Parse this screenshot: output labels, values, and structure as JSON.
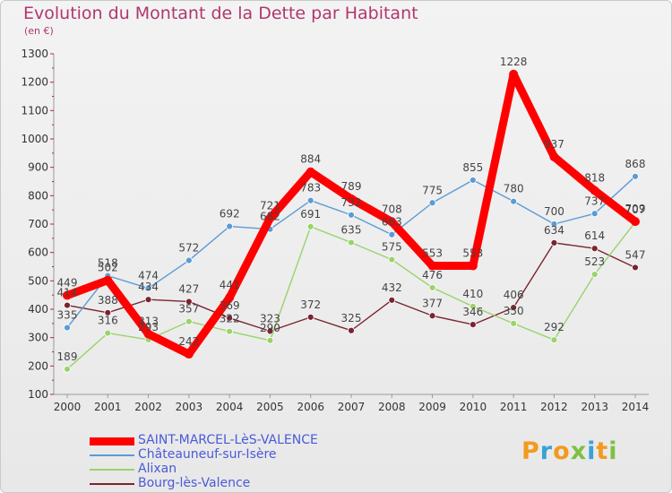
{
  "title": "Evolution du Montant de la Dette par Habitant",
  "subtitle": "(en €)",
  "logo": {
    "text": "Proxiti",
    "colors": [
      "#f39a1e",
      "#3aa0d8",
      "#f39a1e",
      "#7cc142",
      "#3aa0d8",
      "#f39a1e",
      "#7cc142"
    ]
  },
  "chart_data": {
    "type": "line",
    "x": [
      2000,
      2001,
      2002,
      2003,
      2004,
      2005,
      2006,
      2007,
      2008,
      2009,
      2010,
      2011,
      2012,
      2013,
      2014
    ],
    "ylim": [
      100,
      1300
    ],
    "yticks": [
      100,
      200,
      300,
      400,
      500,
      600,
      700,
      800,
      900,
      1000,
      1100,
      1200,
      1300
    ],
    "grid": false,
    "legend_placement": "bottom-left",
    "series": [
      {
        "name": "SAINT-MARCEL-LèS-VALENCE",
        "color": "#ff0000",
        "values": [
          449,
          502,
          313,
          242,
          441,
          721,
          884,
          789,
          708,
          553,
          553,
          1228,
          937,
          818,
          709
        ]
      },
      {
        "name": "Châteauneuf-sur-Isère",
        "color": "#5b9bd5",
        "values": [
          335,
          518,
          474,
          572,
          692,
          682,
          783,
          732,
          663,
          775,
          855,
          780,
          700,
          737,
          868
        ]
      },
      {
        "name": "Alixan",
        "color": "#9ad36a",
        "values": [
          189,
          316,
          293,
          357,
          322,
          290,
          691,
          635,
          575,
          476,
          410,
          350,
          292,
          523,
          707
        ]
      },
      {
        "name": "Bourg-lès-Valence",
        "color": "#7a2430",
        "values": [
          414,
          388,
          434,
          427,
          369,
          323,
          372,
          325,
          432,
          377,
          346,
          406,
          634,
          614,
          547
        ]
      }
    ]
  }
}
